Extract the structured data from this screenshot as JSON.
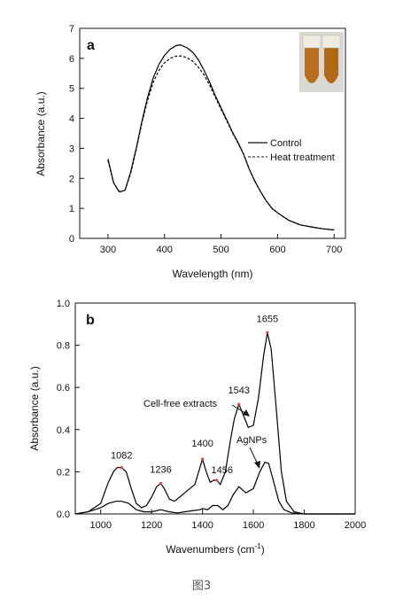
{
  "caption": "图3",
  "chart_data": [
    {
      "type": "line",
      "panel_label": "a",
      "xlabel": "Wavelength (nm)",
      "ylabel": "Absorbance (a.u.)",
      "xlim": [
        250,
        720
      ],
      "ylim": [
        0,
        7
      ],
      "xticks": [
        300,
        400,
        500,
        600,
        700
      ],
      "yticks": [
        0,
        1,
        2,
        3,
        4,
        5,
        6,
        7
      ],
      "legend": {
        "placement": "right",
        "entries": [
          "Control",
          "Heat treatment"
        ]
      },
      "inset": "photo of two sample tubes",
      "series": [
        {
          "name": "Control",
          "style": "solid",
          "color": "#000000",
          "x": [
            300,
            310,
            320,
            330,
            340,
            350,
            360,
            370,
            380,
            390,
            400,
            410,
            420,
            428,
            440,
            450,
            460,
            470,
            480,
            490,
            500,
            510,
            520,
            530,
            540,
            550,
            560,
            570,
            580,
            590,
            600,
            620,
            640,
            660,
            680,
            700
          ],
          "y": [
            2.65,
            1.85,
            1.55,
            1.6,
            2.2,
            3.0,
            3.9,
            4.7,
            5.35,
            5.8,
            6.1,
            6.3,
            6.42,
            6.45,
            6.35,
            6.2,
            5.95,
            5.6,
            5.2,
            4.75,
            4.35,
            3.95,
            3.55,
            3.2,
            2.8,
            2.3,
            1.9,
            1.55,
            1.25,
            1.0,
            0.85,
            0.6,
            0.45,
            0.38,
            0.32,
            0.28
          ]
        },
        {
          "name": "Heat treatment",
          "style": "dashed",
          "color": "#000000",
          "x": [
            300,
            310,
            320,
            330,
            340,
            350,
            360,
            370,
            380,
            390,
            400,
            410,
            420,
            430,
            440,
            450,
            460,
            470,
            480,
            490,
            500,
            510,
            520,
            530,
            540,
            550,
            560,
            570,
            580,
            590,
            600,
            620,
            640,
            660,
            680,
            700
          ],
          "y": [
            2.6,
            1.85,
            1.55,
            1.6,
            2.15,
            2.95,
            3.85,
            4.6,
            5.2,
            5.6,
            5.85,
            6.0,
            6.07,
            6.08,
            6.02,
            5.9,
            5.7,
            5.45,
            5.1,
            4.7,
            4.3,
            3.92,
            3.53,
            3.18,
            2.8,
            2.3,
            1.9,
            1.55,
            1.25,
            1.0,
            0.85,
            0.6,
            0.45,
            0.38,
            0.32,
            0.28
          ]
        }
      ]
    },
    {
      "type": "line",
      "panel_label": "b",
      "xlabel": "Wavenumbers (cm",
      "xlabel_sup": "-1",
      "xlabel_close": ")",
      "ylabel": "Absorbance (a.u.)",
      "xlim": [
        900,
        2000
      ],
      "ylim": [
        0.0,
        1.0
      ],
      "xticks": [
        1000,
        1200,
        1400,
        1600,
        1800,
        2000
      ],
      "yticks": [
        0.0,
        0.2,
        0.4,
        0.6,
        0.8,
        1.0
      ],
      "series": [
        {
          "name": "Cell-free extracts",
          "style": "solid",
          "color": "#000000",
          "x": [
            900,
            950,
            1000,
            1030,
            1050,
            1065,
            1082,
            1100,
            1120,
            1140,
            1160,
            1180,
            1200,
            1220,
            1236,
            1250,
            1270,
            1290,
            1310,
            1330,
            1350,
            1370,
            1385,
            1400,
            1415,
            1430,
            1445,
            1456,
            1470,
            1490,
            1510,
            1525,
            1543,
            1560,
            1580,
            1600,
            1620,
            1640,
            1655,
            1670,
            1690,
            1710,
            1730,
            1760,
            1800,
            1850,
            1900,
            1950,
            2000
          ],
          "y": [
            0.0,
            0.01,
            0.05,
            0.15,
            0.2,
            0.22,
            0.22,
            0.2,
            0.12,
            0.05,
            0.03,
            0.04,
            0.08,
            0.13,
            0.145,
            0.12,
            0.07,
            0.06,
            0.08,
            0.1,
            0.12,
            0.14,
            0.2,
            0.26,
            0.2,
            0.15,
            0.16,
            0.16,
            0.14,
            0.2,
            0.35,
            0.45,
            0.52,
            0.47,
            0.41,
            0.42,
            0.55,
            0.75,
            0.86,
            0.78,
            0.5,
            0.2,
            0.06,
            0.01,
            0.0,
            0.0,
            0.0,
            0.0,
            0.0
          ]
        },
        {
          "name": "AgNPs",
          "style": "solid",
          "color": "#000000",
          "x": [
            900,
            950,
            1000,
            1030,
            1060,
            1082,
            1110,
            1140,
            1170,
            1200,
            1236,
            1270,
            1300,
            1330,
            1360,
            1390,
            1400,
            1420,
            1440,
            1460,
            1480,
            1500,
            1520,
            1543,
            1570,
            1600,
            1625,
            1645,
            1660,
            1680,
            1700,
            1720,
            1750,
            1800,
            1850,
            1900,
            1950,
            2000
          ],
          "y": [
            0.0,
            0.01,
            0.03,
            0.05,
            0.06,
            0.06,
            0.05,
            0.02,
            0.01,
            0.01,
            0.02,
            0.01,
            0.005,
            0.01,
            0.015,
            0.02,
            0.025,
            0.02,
            0.04,
            0.04,
            0.02,
            0.04,
            0.09,
            0.13,
            0.1,
            0.12,
            0.2,
            0.245,
            0.24,
            0.15,
            0.06,
            0.02,
            0.005,
            0.0,
            0.0,
            0.0,
            0.0,
            0.0
          ]
        }
      ],
      "peak_labels": [
        {
          "text": "1082",
          "x": 1082,
          "y": 0.22
        },
        {
          "text": "1236",
          "x": 1236,
          "y": 0.145
        },
        {
          "text": "1400",
          "x": 1400,
          "y": 0.26
        },
        {
          "text": "1456",
          "x": 1456,
          "y": 0.16
        },
        {
          "text": "1543",
          "x": 1543,
          "y": 0.52
        },
        {
          "text": "1655",
          "x": 1655,
          "y": 0.86
        }
      ],
      "annotations": [
        {
          "text": "Cell-free extracts",
          "arrow_to": {
            "x": 1520,
            "y": 0.44
          }
        },
        {
          "text": "AgNPs",
          "arrow_to": {
            "x": 1625,
            "y": 0.2
          }
        }
      ]
    }
  ]
}
